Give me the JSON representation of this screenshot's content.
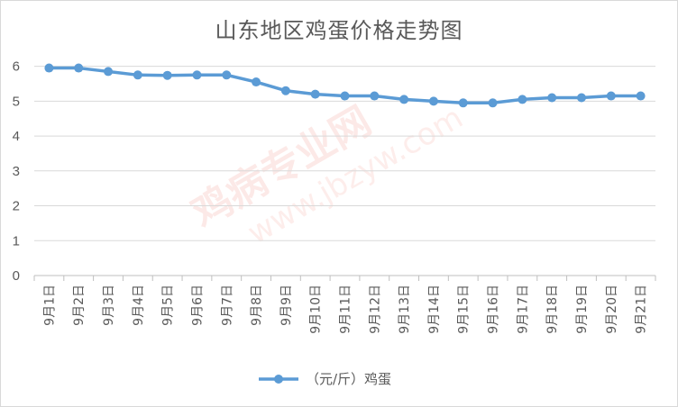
{
  "chart_data": {
    "type": "line",
    "title": "山东地区鸡蛋价格走势图",
    "categories": [
      "9月1日",
      "9月2日",
      "9月3日",
      "9月4日",
      "9月5日",
      "9月6日",
      "9月7日",
      "9月8日",
      "9月9日",
      "9月10日",
      "9月11日",
      "9月12日",
      "9月13日",
      "9月14日",
      "9月15日",
      "9月16日",
      "9月17日",
      "9月18日",
      "9月19日",
      "9月20日",
      "9月21日"
    ],
    "series": [
      {
        "name": "（元/斤）鸡蛋",
        "values": [
          5.95,
          5.95,
          5.85,
          5.75,
          5.74,
          5.75,
          5.75,
          5.55,
          5.3,
          5.2,
          5.15,
          5.15,
          5.05,
          5.0,
          4.95,
          4.95,
          5.05,
          5.1,
          5.1,
          5.15,
          5.15
        ]
      }
    ],
    "yticks": [
      0,
      1,
      2,
      3,
      4,
      5,
      6
    ],
    "ylim": [
      0,
      6.3
    ],
    "grid": true,
    "legend_position": "bottom",
    "line_color": "#5b9bd5"
  },
  "watermark": {
    "text": "鸡病专业网",
    "url": "www.jbzyw.com"
  }
}
